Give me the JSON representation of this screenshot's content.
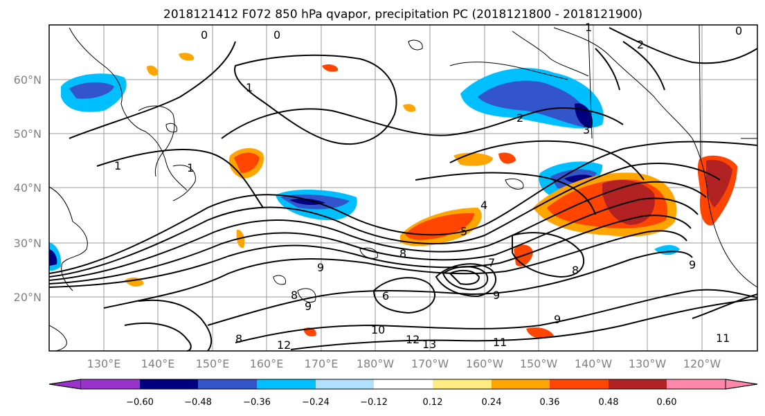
{
  "title": "2018121412 F072 850 hPa qvapor, precipitation PC (2018121800 - 2018121900)",
  "map": {
    "lat_labels": [
      "60°N",
      "50°N",
      "40°N",
      "30°N",
      "20°N"
    ],
    "lon_labels": [
      "130°E",
      "140°E",
      "150°E",
      "160°E",
      "170°E",
      "180°W",
      "170°W",
      "160°W",
      "150°W",
      "140°W",
      "130°W",
      "120°W"
    ],
    "contour_labels": [
      "0",
      "0",
      "0",
      "1",
      "1",
      "1",
      "1",
      "2",
      "2",
      "3",
      "4",
      "5",
      "6",
      "7",
      "8",
      "8",
      "8",
      "8",
      "9",
      "9",
      "9",
      "9",
      "9",
      "10",
      "11",
      "11",
      "12",
      "12",
      "13"
    ]
  },
  "colorbar": {
    "ticks": [
      "−0.60",
      "−0.48",
      "−0.36",
      "−0.24",
      "−0.12",
      "0.12",
      "0.24",
      "0.36",
      "0.48",
      "0.60"
    ],
    "colors": [
      "#9933cc",
      "#000080",
      "#3355cc",
      "#00bfff",
      "#b0e0ff",
      "#ffffff",
      "#ffec80",
      "#ffa500",
      "#ff4500",
      "#b22222",
      "#ff88aa"
    ]
  }
}
